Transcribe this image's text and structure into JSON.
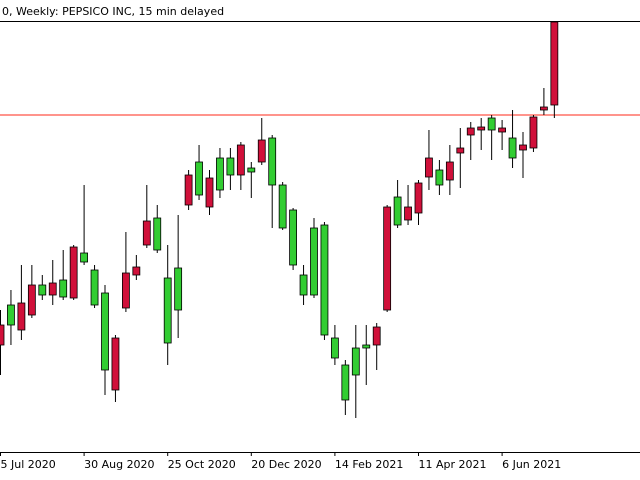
{
  "chart_data": {
    "type": "candlestick",
    "title": "0, Weekly:  PEPSICO INC, 15 min delayed",
    "categories": [
      "5 Jul 2020",
      null,
      null,
      null,
      null,
      null,
      null,
      null,
      "30 Aug 2020",
      null,
      null,
      null,
      null,
      null,
      null,
      null,
      "25 Oct 2020",
      null,
      null,
      null,
      null,
      null,
      null,
      null,
      "20 Dec 2020",
      null,
      null,
      null,
      null,
      null,
      null,
      null,
      "14 Feb 2021",
      null,
      null,
      null,
      null,
      null,
      null,
      null,
      "11 Apr 2021",
      null,
      null,
      null,
      null,
      null,
      null,
      null,
      "6 Jun 2021",
      null,
      null,
      null,
      null,
      null
    ],
    "open": [
      135,
      175,
      150,
      165,
      195,
      185,
      200,
      182,
      227,
      210,
      187,
      90,
      172,
      205,
      235,
      262,
      202,
      212,
      275,
      318,
      273,
      322,
      322,
      305,
      312,
      318,
      342,
      295,
      270,
      205,
      252,
      255,
      142,
      115,
      132,
      135,
      135,
      170,
      283,
      260,
      267,
      303,
      310,
      300,
      327,
      345,
      350,
      362,
      348,
      342,
      330,
      332,
      370,
      375
    ],
    "high": [
      170,
      190,
      215,
      215,
      205,
      220,
      230,
      235,
      295,
      215,
      195,
      145,
      248,
      225,
      295,
      275,
      235,
      265,
      310,
      335,
      310,
      332,
      332,
      338,
      318,
      362,
      345,
      298,
      272,
      215,
      262,
      258,
      155,
      120,
      155,
      155,
      157,
      275,
      300,
      295,
      300,
      350,
      320,
      335,
      352,
      358,
      362,
      365,
      360,
      370,
      348,
      365,
      392,
      458
    ],
    "low": [
      105,
      135,
      140,
      162,
      180,
      175,
      180,
      180,
      215,
      172,
      85,
      78,
      168,
      200,
      232,
      227,
      115,
      142,
      270,
      280,
      265,
      282,
      290,
      290,
      282,
      315,
      252,
      250,
      210,
      175,
      182,
      140,
      115,
      65,
      62,
      95,
      110,
      168,
      252,
      255,
      255,
      290,
      285,
      285,
      292,
      320,
      330,
      320,
      330,
      312,
      302,
      328,
      365,
      362
    ],
    "close": [
      155,
      155,
      177,
      195,
      185,
      197,
      183,
      233,
      218,
      175,
      110,
      142,
      207,
      213,
      259,
      230,
      137,
      170,
      305,
      285,
      302,
      290,
      305,
      335,
      308,
      340,
      295,
      252,
      215,
      185,
      185,
      145,
      122,
      80,
      105,
      132,
      153,
      273,
      255,
      273,
      297,
      322,
      295,
      318,
      332,
      352,
      353,
      350,
      352,
      322,
      335,
      363,
      373,
      458
    ],
    "up_color": "#d0103a",
    "down_color": "#32cd32",
    "ylim": [
      28,
      458
    ],
    "hline": {
      "value": 365,
      "color": "#ff2a1a"
    }
  }
}
